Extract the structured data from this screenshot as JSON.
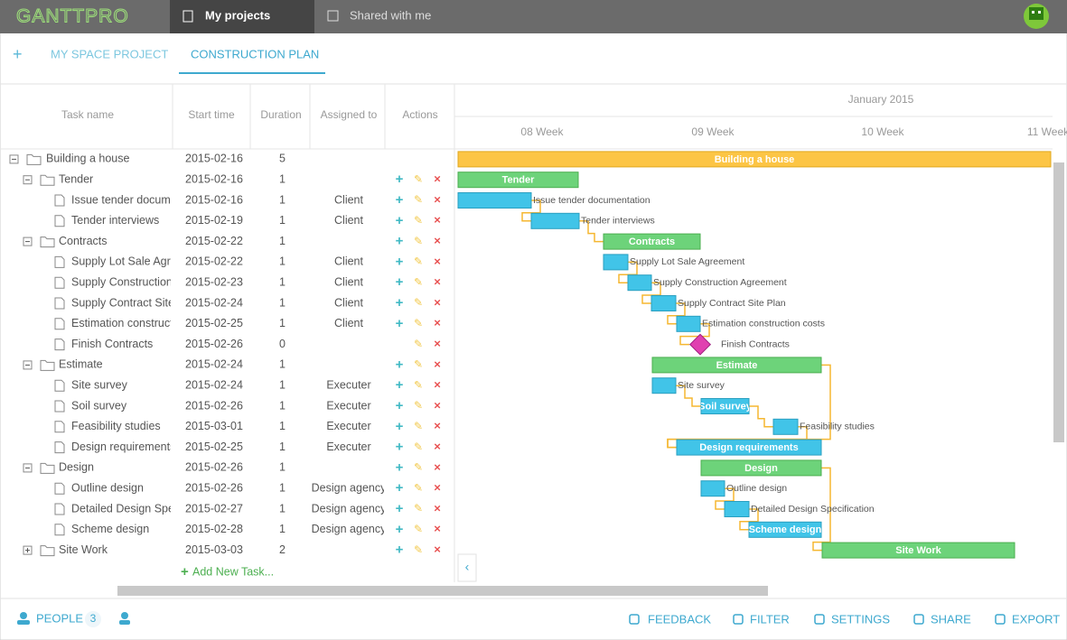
{
  "header": {
    "logo": "GANTTPRO",
    "tabs": [
      "My projects",
      "Shared with me"
    ]
  },
  "project_tabs": [
    "MY SPACE PROJECT",
    "CONSTRUCTION PLAN"
  ],
  "table": {
    "columns": [
      "Task name",
      "Start time",
      "Duration",
      "Assigned to",
      "Actions"
    ],
    "rows": [
      {
        "name": "Building a house",
        "start": "2015-02-16",
        "duration": 5
      },
      {
        "name": "Tender",
        "start": "2015-02-16",
        "duration": 1
      },
      {
        "name": "Issue tender documentation",
        "start": "2015-02-16",
        "duration": 1,
        "assigned": "Client"
      },
      {
        "name": "Tender interviews",
        "start": "2015-02-19",
        "duration": 1,
        "assigned": "Client"
      },
      {
        "name": "Contracts",
        "start": "2015-02-22",
        "duration": 1
      },
      {
        "name": "Supply Lot Sale Agreement",
        "start": "2015-02-22",
        "duration": 1,
        "assigned": "Client"
      },
      {
        "name": "Supply Construction Agreement",
        "start": "2015-02-23",
        "duration": 1,
        "assigned": "Client"
      },
      {
        "name": "Supply Contract Site Plan",
        "start": "2015-02-24",
        "duration": 1,
        "assigned": "Client"
      },
      {
        "name": "Estimation construction costs",
        "start": "2015-02-25",
        "duration": 1,
        "assigned": "Client"
      },
      {
        "name": "Finish Contracts",
        "start": "2015-02-26",
        "duration": 0
      },
      {
        "name": "Estimate",
        "start": "2015-02-24",
        "duration": 1
      },
      {
        "name": "Site survey",
        "start": "2015-02-24",
        "duration": 1,
        "assigned": "Executer"
      },
      {
        "name": "Soil survey",
        "start": "2015-02-26",
        "duration": 1,
        "assigned": "Executer"
      },
      {
        "name": "Feasibility studies",
        "start": "2015-03-01",
        "duration": 1,
        "assigned": "Executer"
      },
      {
        "name": "Design requirements",
        "start": "2015-02-25",
        "duration": 1,
        "assigned": "Executer"
      },
      {
        "name": "Design",
        "start": "2015-02-26",
        "duration": 1
      },
      {
        "name": "Outline design",
        "start": "2015-02-26",
        "duration": 1,
        "assigned": "Design agency"
      },
      {
        "name": "Detailed Design Specification",
        "start": "2015-02-27",
        "duration": 1,
        "assigned": "Design agency"
      },
      {
        "name": "Scheme design",
        "start": "2015-02-28",
        "duration": 1,
        "assigned": "Design agency"
      },
      {
        "name": "Site Work",
        "start": "2015-03-03",
        "duration": 2
      }
    ],
    "add_task": "Add New Task..."
  },
  "timeline": {
    "month": "January 2015",
    "weeks": [
      "08 Week",
      "09 Week",
      "10 Week",
      "11 Week"
    ]
  },
  "footer": {
    "people": "PEOPLE",
    "people_count": 3,
    "buttons": [
      "FEEDBACK",
      "FILTER",
      "SETTINGS",
      "SHARE",
      "EXPORT"
    ]
  }
}
